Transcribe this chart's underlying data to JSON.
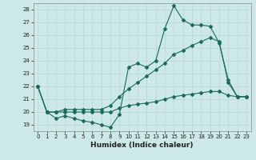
{
  "xlabel": "Humidex (Indice chaleur)",
  "bg_color": "#cce8e8",
  "grid_color": "#b8d4d4",
  "line_color": "#1a6b5a",
  "xlim": [
    -0.5,
    23.5
  ],
  "ylim": [
    18.5,
    28.5
  ],
  "yticks": [
    19,
    20,
    21,
    22,
    23,
    24,
    25,
    26,
    27,
    28
  ],
  "xticks": [
    0,
    1,
    2,
    3,
    4,
    5,
    6,
    7,
    8,
    9,
    10,
    11,
    12,
    13,
    14,
    15,
    16,
    17,
    18,
    19,
    20,
    21,
    22,
    23
  ],
  "line1_x": [
    0,
    1,
    2,
    3,
    4,
    5,
    6,
    7,
    8,
    9,
    10,
    11,
    12,
    13,
    14,
    15,
    16,
    17,
    18,
    19,
    20,
    21,
    22,
    23
  ],
  "line1_y": [
    22,
    20,
    19.5,
    19.7,
    19.5,
    19.3,
    19.2,
    19.0,
    18.8,
    19.8,
    23.5,
    23.8,
    23.5,
    24.0,
    26.5,
    28.3,
    27.2,
    26.8,
    26.8,
    26.7,
    25.4,
    22.5,
    21.2,
    21.2
  ],
  "line2_x": [
    0,
    1,
    2,
    3,
    4,
    5,
    6,
    7,
    8,
    9,
    10,
    11,
    12,
    13,
    14,
    15,
    16,
    17,
    18,
    19,
    20,
    21,
    22,
    23
  ],
  "line2_y": [
    22,
    20,
    20,
    20.2,
    20.2,
    20.2,
    20.2,
    20.2,
    20.5,
    21.2,
    21.8,
    22.3,
    22.8,
    23.3,
    23.8,
    24.5,
    24.8,
    25.2,
    25.5,
    25.8,
    25.5,
    22.3,
    21.2,
    21.2
  ],
  "line3_x": [
    0,
    1,
    2,
    3,
    4,
    5,
    6,
    7,
    8,
    9,
    10,
    11,
    12,
    13,
    14,
    15,
    16,
    17,
    18,
    19,
    20,
    21,
    22,
    23
  ],
  "line3_y": [
    22,
    20,
    20,
    20,
    20,
    20,
    20,
    20,
    20,
    20.3,
    20.5,
    20.6,
    20.7,
    20.8,
    21.0,
    21.2,
    21.3,
    21.4,
    21.5,
    21.6,
    21.6,
    21.3,
    21.2,
    21.2
  ]
}
